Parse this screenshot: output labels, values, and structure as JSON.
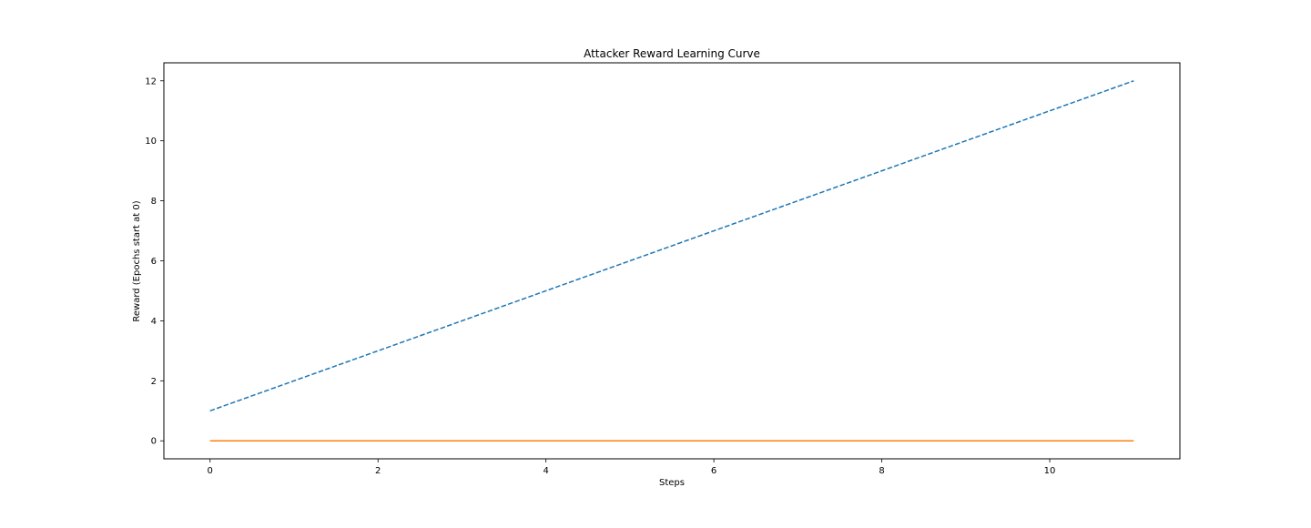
{
  "chart_data": {
    "type": "line",
    "title": "Attacker Reward Learning Curve",
    "xlabel": "Steps",
    "ylabel": "Reward (Epochs start at 0)",
    "xlim": [
      -0.55,
      11.55
    ],
    "ylim": [
      -0.6,
      12.6
    ],
    "xticks": [
      0,
      2,
      4,
      6,
      8,
      10
    ],
    "yticks": [
      0,
      2,
      4,
      6,
      8,
      10,
      12
    ],
    "grid": false,
    "series": [
      {
        "x": [
          0,
          1,
          2,
          3,
          4,
          5,
          6,
          7,
          8,
          9,
          10,
          11
        ],
        "y": [
          1,
          2,
          3,
          4,
          5,
          6,
          7,
          8,
          9,
          10,
          11,
          12
        ],
        "color": "#1f77b4",
        "style": "dashed"
      },
      {
        "x": [
          0,
          1,
          2,
          3,
          4,
          5,
          6,
          7,
          8,
          9,
          10,
          11
        ],
        "y": [
          0,
          0,
          0,
          0,
          0,
          0,
          0,
          0,
          0,
          0,
          0,
          0
        ],
        "color": "#ff7f0e",
        "style": "solid"
      }
    ]
  }
}
